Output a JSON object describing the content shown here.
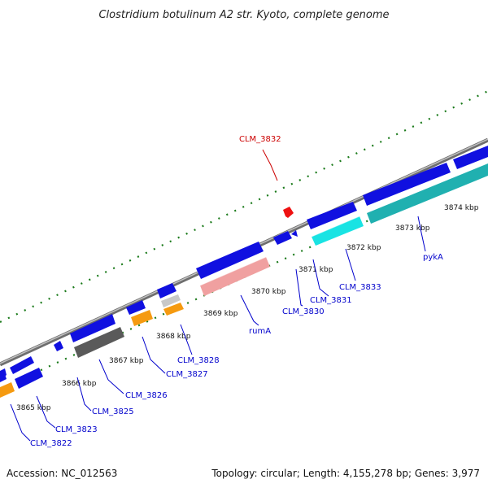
{
  "title": "Clostridium botulinum A2 str. Kyoto, complete genome",
  "accession": "Accession: NC_012563",
  "topology": "Topology: circular; Length: 4,155,278 bp; Genes: 3,977",
  "kbp_labels": [
    "3865 kbp",
    "3866 kbp",
    "3867 kbp",
    "3868 kbp",
    "3869 kbp",
    "3870 kbp",
    "3871 kbp",
    "3872 kbp",
    "3873 kbp",
    "3874 kbp"
  ],
  "gene_labels": {
    "clm3822": "CLM_3822",
    "clm3823": "CLM_3823",
    "clm3825": "CLM_3825",
    "clm3826": "CLM_3826",
    "clm3827": "CLM_3827",
    "clm3828": "CLM_3828",
    "ruma": "rumA",
    "clm3830": "CLM_3830",
    "clm3831": "CLM_3831",
    "clm3832": "CLM_3832",
    "clm3833": "CLM_3833",
    "pyka": "pykA"
  },
  "colors": {
    "backbone": "#8c8c8c",
    "cds_forward": "#1010e0",
    "rrna": "#f0a0a0",
    "trna_cyan": "#19e3e3",
    "teal": "#20b0b0",
    "orange": "#f59a10",
    "gray_feature": "#666666",
    "light_gray": "#c8c8c8",
    "red_feature": "#ee1111",
    "tick": "#1a7a1a",
    "label_blue": "#0000cc",
    "label_red": "#cc0000"
  }
}
